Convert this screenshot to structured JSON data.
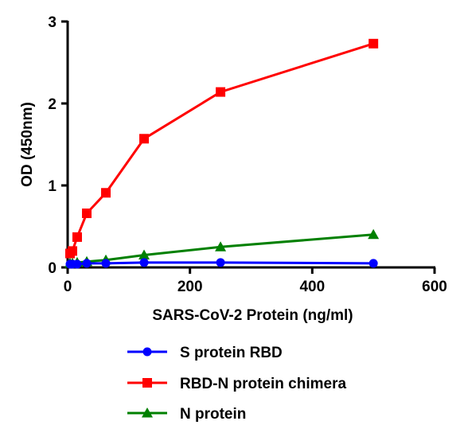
{
  "chart_data": {
    "type": "line",
    "title": "",
    "xlabel": "SARS-CoV-2 Protein (ng/ml)",
    "ylabel": "OD (450nm)",
    "xlim": [
      0,
      600
    ],
    "ylim": [
      0,
      3
    ],
    "xticks": [
      0,
      200,
      400,
      600
    ],
    "yticks": [
      0,
      1,
      2,
      3
    ],
    "grid": false,
    "legend_position": "bottom",
    "series": [
      {
        "name": "S protein RBD",
        "color": "#0000ff",
        "marker": "circle",
        "x": [
          3.9,
          7.8,
          15.6,
          31.25,
          62.5,
          125,
          250,
          500
        ],
        "y": [
          0.04,
          0.04,
          0.04,
          0.05,
          0.05,
          0.06,
          0.06,
          0.05
        ]
      },
      {
        "name": "RBD-N protein chimera",
        "color": "#ff0000",
        "marker": "square",
        "x": [
          3.9,
          7.8,
          15.6,
          31.25,
          62.5,
          125,
          250,
          500
        ],
        "y": [
          0.17,
          0.2,
          0.37,
          0.66,
          0.91,
          1.57,
          2.14,
          2.73
        ]
      },
      {
        "name": "N protein",
        "color": "#008000",
        "marker": "triangle",
        "x": [
          3.9,
          7.8,
          15.6,
          31.25,
          62.5,
          125,
          250,
          500
        ],
        "y": [
          0.05,
          0.05,
          0.06,
          0.07,
          0.09,
          0.15,
          0.25,
          0.4
        ]
      }
    ]
  }
}
